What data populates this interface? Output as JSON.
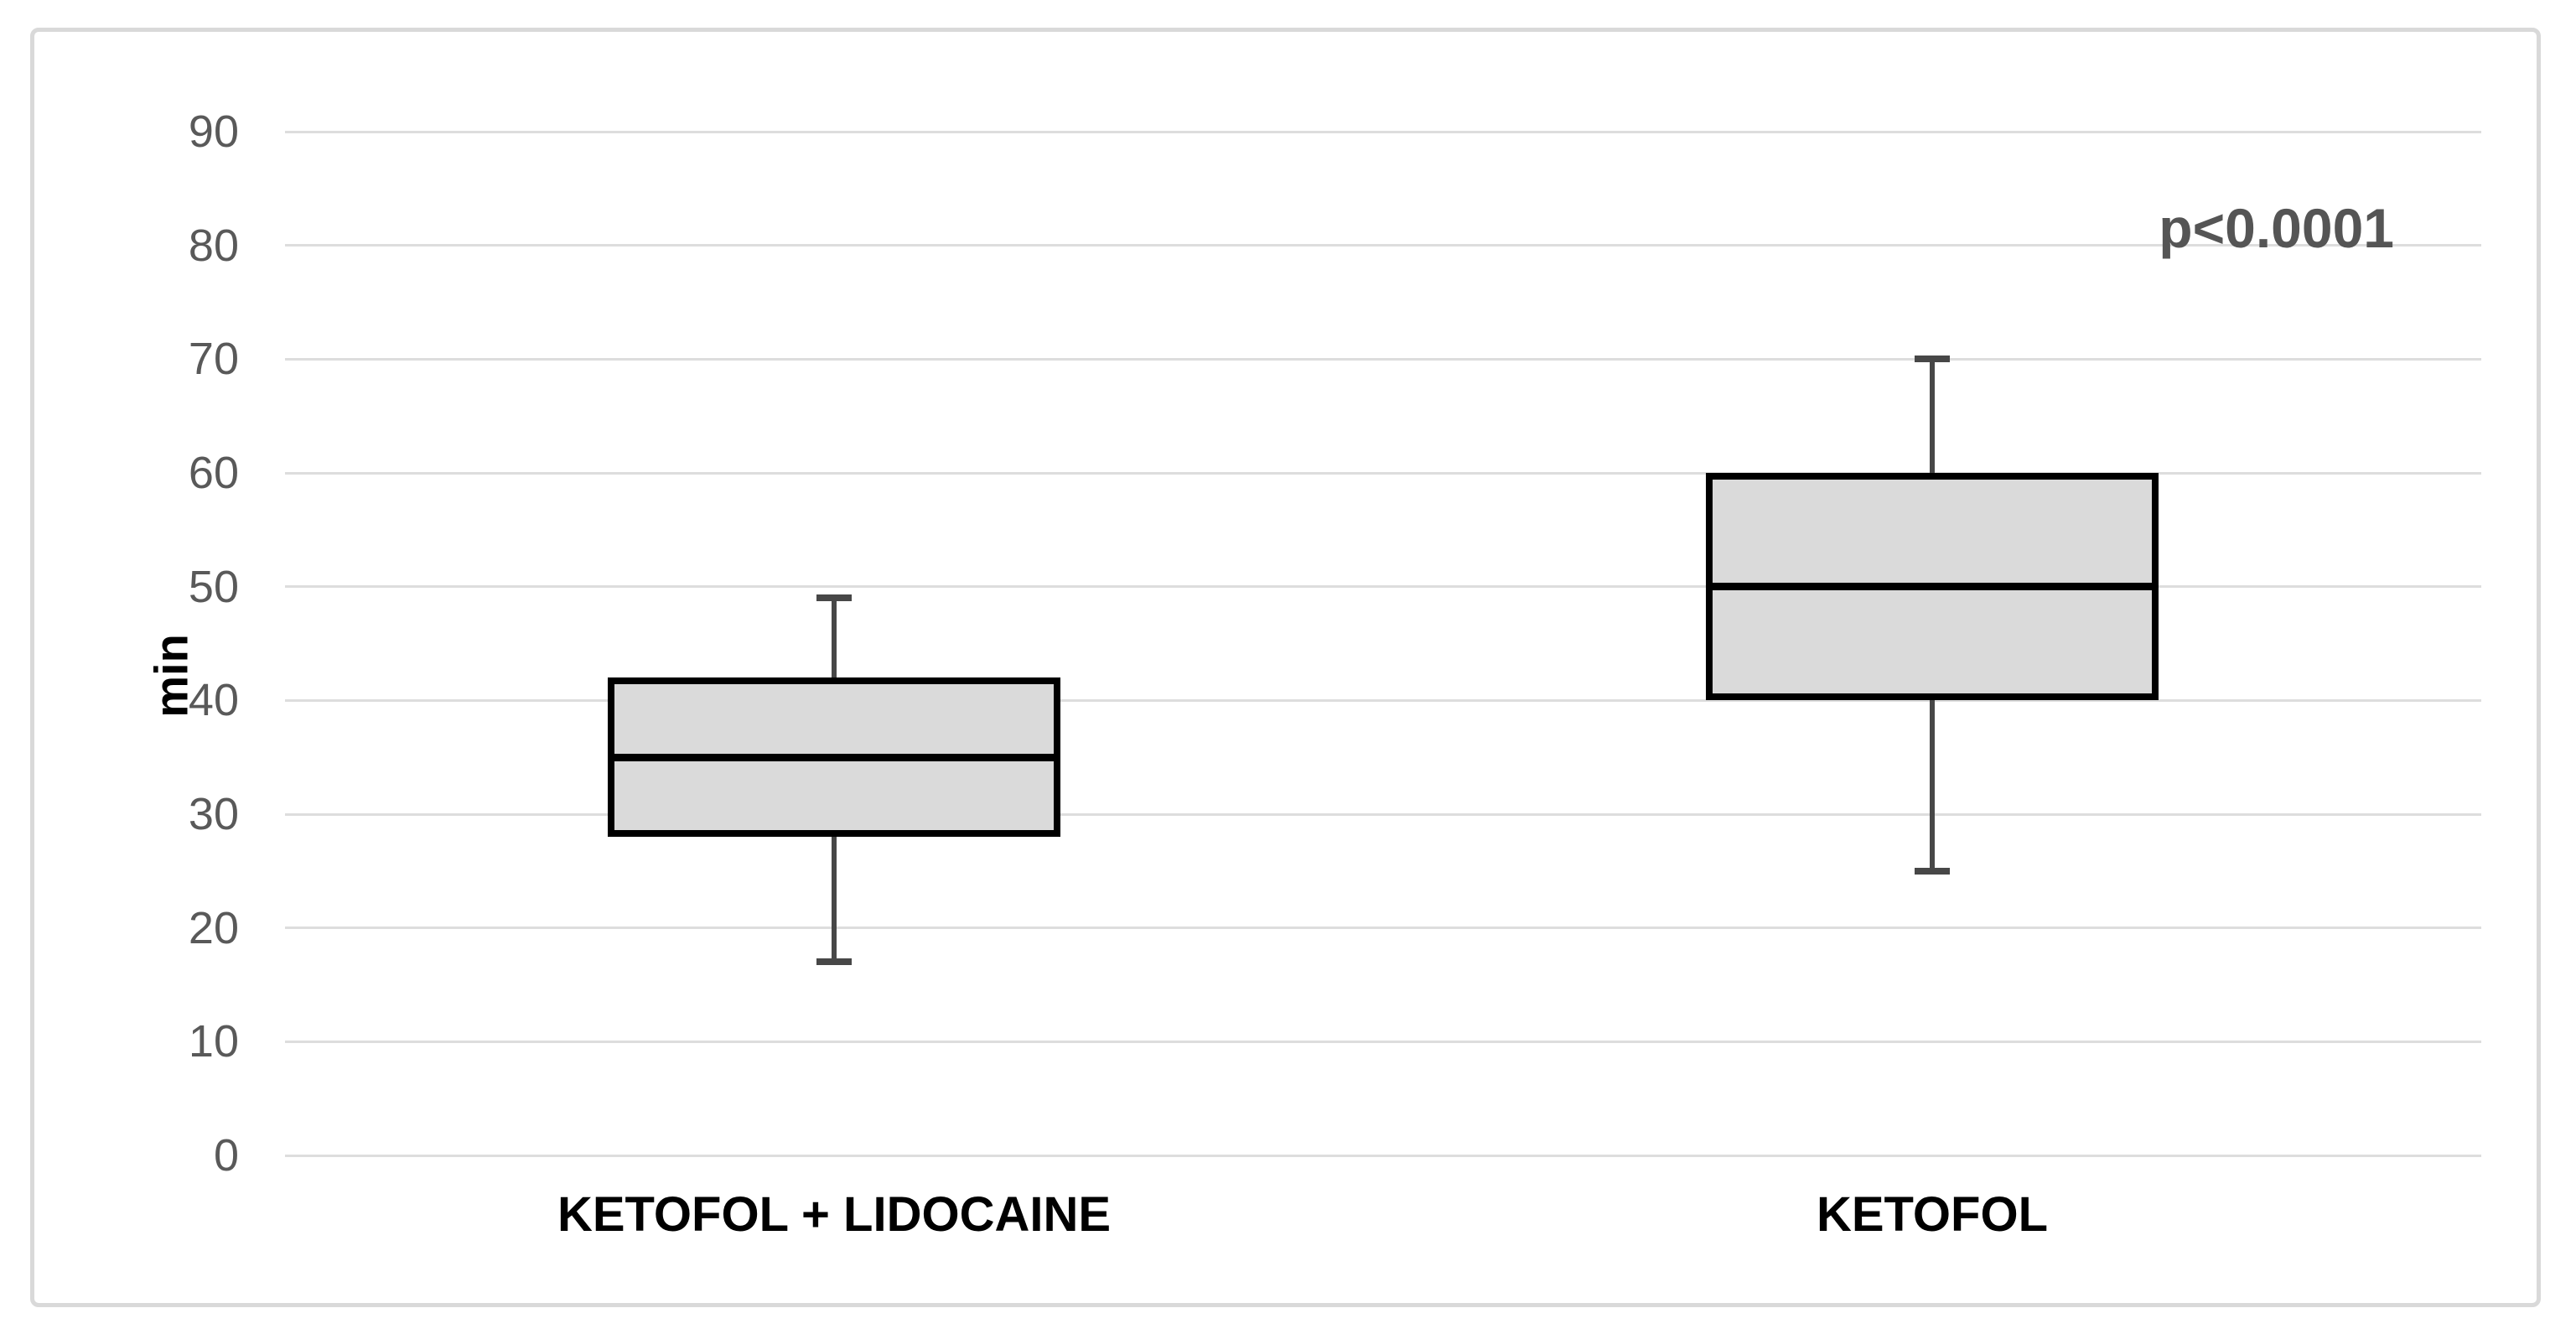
{
  "chart_data": {
    "type": "boxplot",
    "title": "",
    "xlabel": "",
    "ylabel": "min",
    "annotation": "p<0.0001",
    "ylim": [
      0,
      90
    ],
    "y_ticks": [
      0,
      10,
      20,
      30,
      40,
      50,
      60,
      70,
      80,
      90
    ],
    "grid": true,
    "legend": "none",
    "categories": [
      "KETOFOL + LIDOCAINE",
      "KETOFOL"
    ],
    "series": [
      {
        "name": "KETOFOL + LIDOCAINE",
        "min": 17,
        "q1": 28,
        "median": 35,
        "q3": 42,
        "max": 49
      },
      {
        "name": "KETOFOL",
        "min": 25,
        "q1": 40,
        "median": 50,
        "q3": 60,
        "max": 70
      }
    ],
    "colors": {
      "box_fill": "#dadada",
      "box_border": "#000000",
      "median": "#000000",
      "whisker": "#474747",
      "gridline": "#dddddd",
      "frame_border": "#d9d9d9",
      "tick_label": "#595959",
      "category_label": "#000000",
      "annotation": "#555555",
      "background": "#ffffff"
    }
  }
}
